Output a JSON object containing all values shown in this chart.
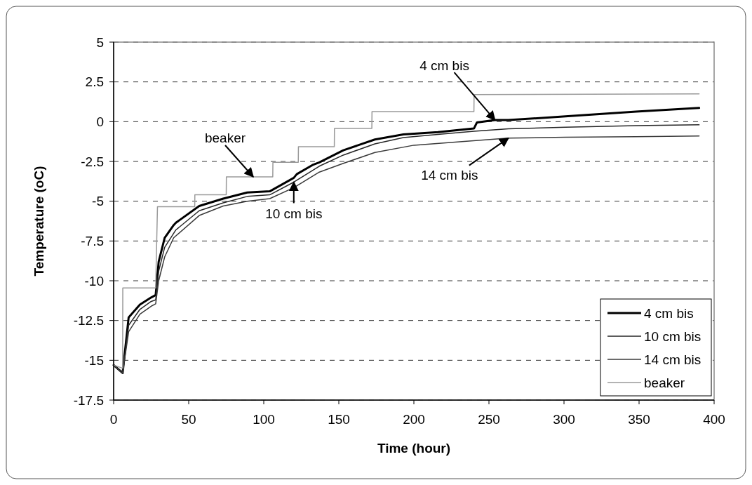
{
  "chart_data": {
    "type": "line",
    "xlabel": "Time (hour)",
    "ylabel": "Temperature (oC)",
    "xlim": [
      0,
      400
    ],
    "ylim": [
      -17.5,
      5
    ],
    "xticks": [
      0,
      50,
      100,
      150,
      200,
      250,
      300,
      350,
      400
    ],
    "yticks": [
      -17.5,
      -15,
      -12.5,
      -10,
      -7.5,
      -5,
      -2.5,
      0,
      2.5,
      5
    ],
    "grid": "y",
    "legend": "bottom right",
    "line_style": "solid",
    "marker": "none",
    "series": [
      {
        "name": "4 cm bis",
        "color": "#000000",
        "x": [
          0,
          6,
          10,
          17.5,
          25,
          28,
          30,
          34,
          40,
          41.5,
          57,
          73,
          89,
          104,
          120,
          122,
          133,
          137,
          153,
          174,
          193,
          216,
          240,
          242,
          254,
          263,
          301,
          348,
          390
        ],
        "values": [
          -15.3,
          -15.8,
          -12.3,
          -11.5,
          -11.05,
          -10.9,
          -8.8,
          -7.3,
          -6.5,
          -6.35,
          -5.3,
          -4.84,
          -4.45,
          -4.38,
          -3.53,
          -3.3,
          -2.7,
          -2.56,
          -1.8,
          -1.12,
          -0.8,
          -0.66,
          -0.43,
          -0.05,
          0.1,
          0.1,
          0.33,
          0.63,
          0.86
        ]
      },
      {
        "name": "10 cm bis",
        "color": "#262626",
        "x": [
          0,
          6,
          10,
          17.5,
          25,
          28,
          30,
          34,
          41.5,
          57,
          73,
          89,
          104,
          120,
          137,
          153,
          174,
          193,
          216,
          240,
          263,
          301,
          348,
          390
        ],
        "values": [
          -15.3,
          -15.8,
          -12.8,
          -11.8,
          -11.3,
          -11.2,
          -9.4,
          -7.9,
          -6.8,
          -5.6,
          -5.1,
          -4.7,
          -4.6,
          -3.8,
          -2.8,
          -2.1,
          -1.4,
          -1,
          -0.8,
          -0.6,
          -0.45,
          -0.35,
          -0.25,
          -0.2
        ]
      },
      {
        "name": "14 cm bis",
        "color": "#3a3a3a",
        "x": [
          0,
          6,
          10,
          17.5,
          25,
          28,
          30,
          34,
          40,
          57,
          73,
          89,
          104,
          120,
          133,
          137,
          153,
          174,
          200,
          232,
          263,
          301,
          348,
          390
        ],
        "values": [
          -15.3,
          -15.8,
          -13.2,
          -12.1,
          -11.6,
          -11.45,
          -10,
          -8.5,
          -7.3,
          -5.9,
          -5.3,
          -5,
          -4.84,
          -4.15,
          -3.4,
          -3.17,
          -2.62,
          -1.94,
          -1.48,
          -1.25,
          -1.03,
          -0.98,
          -0.94,
          -0.9
        ]
      },
      {
        "name": "beaker",
        "color": "#9a9a9a",
        "x": [
          0,
          6,
          6.1,
          28,
          29.2,
          54,
          54.1,
          75,
          75.1,
          106,
          106.1,
          123,
          123.1,
          147,
          147.1,
          172,
          172.1,
          240,
          240.1,
          390
        ],
        "values": [
          -15.3,
          -15.5,
          -10.45,
          -10.45,
          -5.35,
          -5.35,
          -4.6,
          -4.6,
          -3.47,
          -3.47,
          -2.56,
          -2.56,
          -1.57,
          -1.57,
          -0.43,
          -0.43,
          0.63,
          0.63,
          1.7,
          1.75
        ]
      }
    ],
    "annotations": [
      {
        "text": "beaker",
        "x": 93,
        "y": -3.47
      },
      {
        "text": "4 cm bis",
        "x": 254,
        "y": 0.1
      },
      {
        "text": "14 cm bis",
        "x": 263,
        "y": -1.03
      },
      {
        "text": "10 cm bis",
        "x": 120,
        "y": -3.8
      }
    ]
  }
}
